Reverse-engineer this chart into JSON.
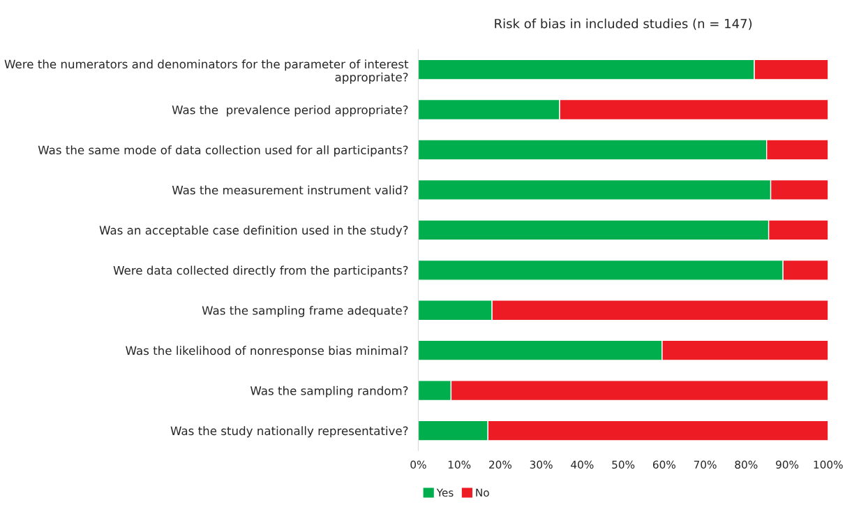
{
  "chart_data": {
    "type": "bar",
    "orientation": "horizontal",
    "stacked": true,
    "title": "Risk of bias in included studies (n = 147)",
    "categories": [
      "Were the numerators and denominators for the parameter of interest appropriate?",
      "Was the  prevalence period appropriate?",
      "Was the same mode of data collection used for all participants?",
      "Was the measurement instrument valid?",
      "Was an acceptable case definition used in the study?",
      "Were data collected directly from the participants?",
      "Was the sampling frame adequate?",
      "Was the likelihood of nonresponse bias minimal?",
      "Was the sampling random?",
      "Was the study nationally representative?"
    ],
    "series": [
      {
        "name": "Yes",
        "color": "#00ae4d",
        "values": [
          82,
          34.5,
          85,
          86,
          85.5,
          89,
          18,
          59.5,
          8,
          17
        ]
      },
      {
        "name": "No",
        "color": "#ed1c24",
        "values": [
          18,
          65.5,
          15,
          14,
          14.5,
          11,
          82,
          40.5,
          92,
          83
        ]
      }
    ],
    "xlim": [
      0,
      100
    ],
    "xticks": [
      {
        "value": 0,
        "label": "0%"
      },
      {
        "value": 10,
        "label": "10%"
      },
      {
        "value": 20,
        "label": "20%"
      },
      {
        "value": 30,
        "label": "30%"
      },
      {
        "value": 40,
        "label": "40%"
      },
      {
        "value": 50,
        "label": "50%"
      },
      {
        "value": 60,
        "label": "60%"
      },
      {
        "value": 70,
        "label": "70%"
      },
      {
        "value": 80,
        "label": "80%"
      },
      {
        "value": 90,
        "label": "90%"
      },
      {
        "value": 100,
        "label": "100%"
      }
    ],
    "grid": false,
    "legend": "bottom"
  }
}
